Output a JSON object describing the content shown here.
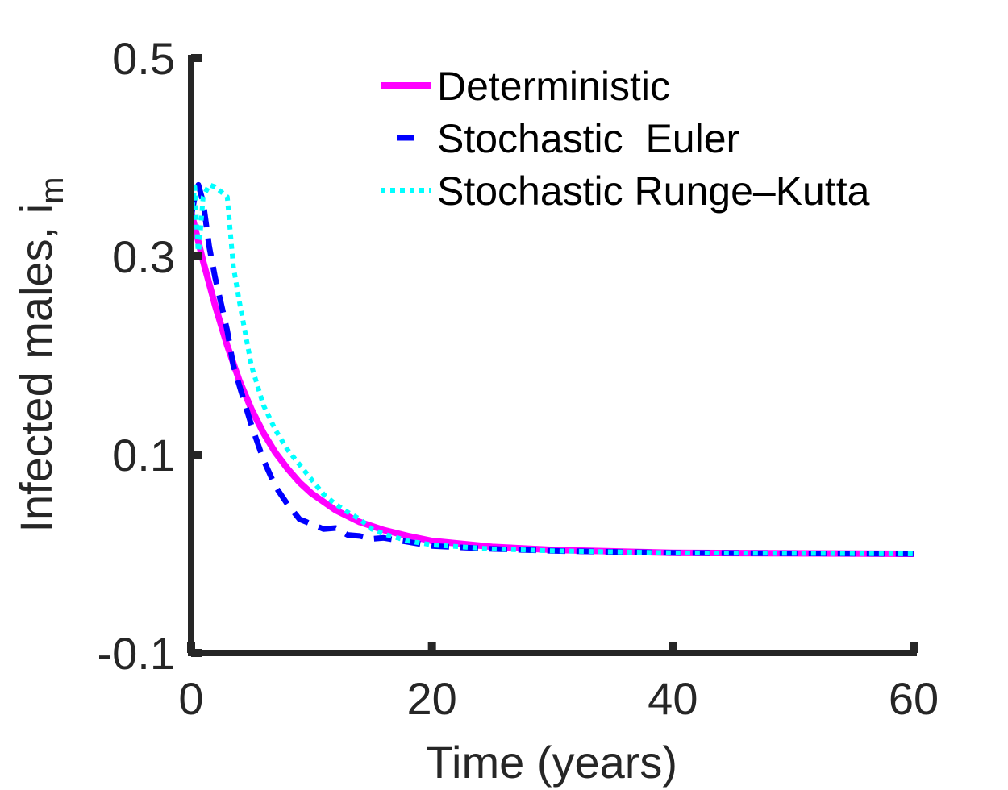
{
  "chart_data": {
    "type": "line",
    "xlabel": "Time (years)",
    "ylabel": "Infected males, i",
    "ylabel_subscript": "m",
    "xlim": [
      0,
      60
    ],
    "ylim": [
      -0.1,
      0.5
    ],
    "xticks": [
      0,
      20,
      40,
      60
    ],
    "xtick_labels": [
      "0",
      "20",
      "40",
      "60"
    ],
    "yticks": [
      -0.1,
      0.1,
      0.3,
      0.5
    ],
    "ytick_labels": [
      "-0.1",
      "0.1",
      "0.3",
      "0.5"
    ],
    "grid": false,
    "legend_position": "top-right",
    "series": [
      {
        "name": "Deterministic",
        "color": "#ff00ff",
        "style": "solid",
        "x": [
          0,
          1,
          2,
          3,
          4,
          5,
          6,
          7,
          8,
          9,
          10,
          12,
          14,
          16,
          18,
          20,
          25,
          30,
          40,
          50,
          60
        ],
        "y": [
          0.345,
          0.295,
          0.25,
          0.21,
          0.175,
          0.146,
          0.122,
          0.102,
          0.086,
          0.072,
          0.061,
          0.044,
          0.032,
          0.024,
          0.018,
          0.013,
          0.007,
          0.004,
          0.001,
          0.0005,
          0.0
        ]
      },
      {
        "name": "Stochastic  Euler",
        "color": "#0000ff",
        "style": "dashed",
        "x": [
          0,
          0.3,
          0.6,
          1,
          1.5,
          2,
          2.5,
          3,
          3.5,
          4,
          5,
          6,
          7,
          8,
          9,
          10,
          11,
          12,
          13,
          14,
          15,
          16,
          18,
          20,
          25,
          30,
          40,
          50,
          60
        ],
        "y": [
          0.34,
          0.36,
          0.372,
          0.355,
          0.31,
          0.278,
          0.252,
          0.225,
          0.19,
          0.17,
          0.13,
          0.095,
          0.068,
          0.05,
          0.035,
          0.03,
          0.025,
          0.026,
          0.019,
          0.018,
          0.015,
          0.016,
          0.012,
          0.008,
          0.005,
          0.003,
          0.001,
          0.0005,
          0.0
        ]
      },
      {
        "name": "Stochastic Runge–Kutta",
        "color": "#00ffff",
        "style": "dotted",
        "x": [
          0,
          0.3,
          0.6,
          1,
          1.5,
          2,
          2.5,
          3,
          3.5,
          4,
          5,
          6,
          7,
          8,
          9,
          10,
          11,
          12,
          13,
          14,
          15,
          16,
          18,
          20,
          25,
          30,
          40,
          50,
          60
        ],
        "y": [
          0.34,
          0.37,
          0.3,
          0.36,
          0.372,
          0.37,
          0.365,
          0.36,
          0.29,
          0.255,
          0.19,
          0.15,
          0.125,
          0.105,
          0.09,
          0.075,
          0.06,
          0.05,
          0.042,
          0.035,
          0.025,
          0.02,
          0.013,
          0.009,
          0.005,
          0.003,
          0.001,
          0.0005,
          0.0
        ]
      }
    ]
  }
}
